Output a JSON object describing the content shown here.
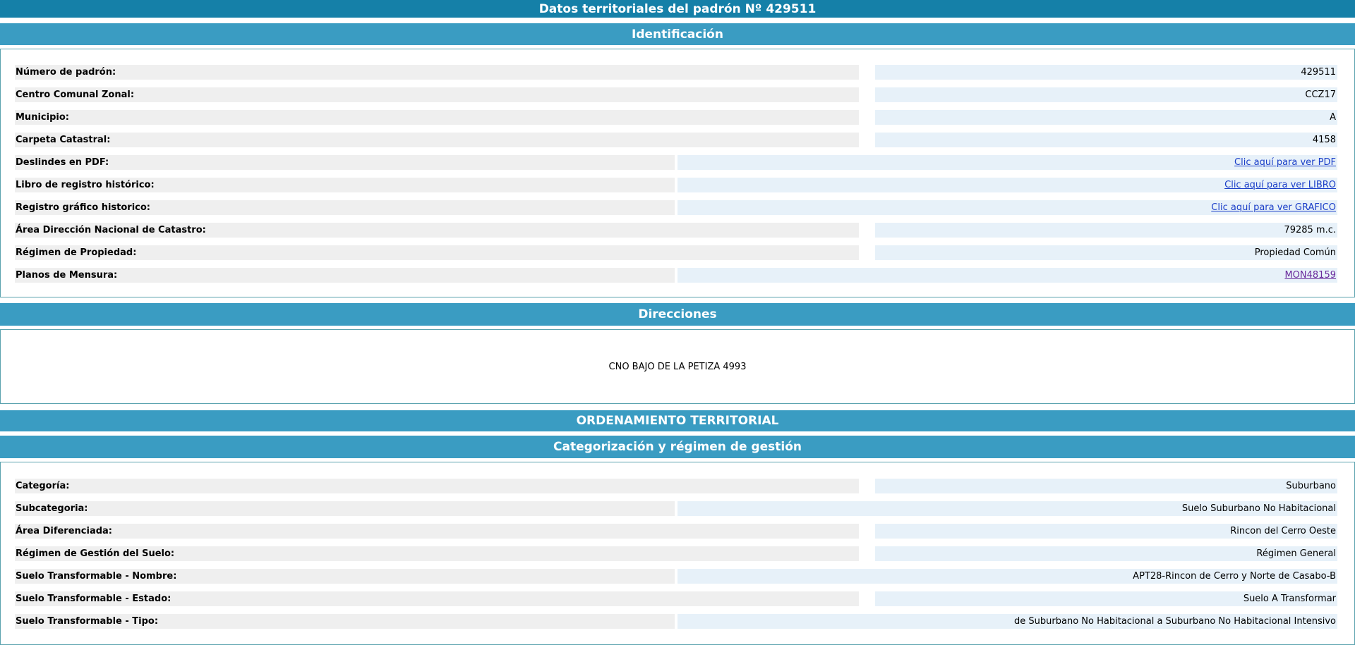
{
  "header": {
    "title": "Datos territoriales del padrón Nº 429511"
  },
  "identificacion": {
    "title": "Identificación",
    "rows": [
      [
        "Número de padrón:",
        "429511"
      ],
      [
        "Centro Comunal Zonal:",
        "CCZ17"
      ],
      [
        "Municipio:",
        "A"
      ],
      [
        "Carpeta Catastral:",
        "4158"
      ],
      [
        "Deslindes en PDF:",
        "Clic aquí para ver PDF"
      ],
      [
        "Libro de registro histórico:",
        "Clic aquí para ver LIBRO"
      ],
      [
        "Registro gráfico historico:",
        "Clic aquí para ver GRAFICO"
      ],
      [
        "Área Dirección Nacional de Catastro:",
        "79285 m.c."
      ],
      [
        "Régimen de Propiedad:",
        "Propiedad Común"
      ],
      [
        "Planos de Mensura:",
        "MON48159"
      ]
    ]
  },
  "direcciones": {
    "title": "Direcciones",
    "address": "CNO BAJO DE LA PETIZA 4993"
  },
  "ordenamiento": {
    "title": "ORDENAMIENTO TERRITORIAL"
  },
  "categorizacion": {
    "title": "Categorización y régimen de gestión",
    "rows": [
      [
        "Categoría:",
        "Suburbano"
      ],
      [
        "Subcategoria:",
        "Suelo Suburbano No Habitacional"
      ],
      [
        "Área Diferenciada:",
        "Rincon del Cerro Oeste"
      ],
      [
        "Régimen de Gestión del Suelo:",
        "Régimen General"
      ],
      [
        "Suelo Transformable - Nombre:",
        "APT28-Rincon de Cerro y Norte de Casabo-B"
      ],
      [
        "Suelo Transformable - Estado:",
        "Suelo A Transformar"
      ],
      [
        "Suelo Transformable - Tipo:",
        "de Suburbano No Habitacional a Suburbano No Habitacional Intensivo"
      ]
    ]
  }
}
